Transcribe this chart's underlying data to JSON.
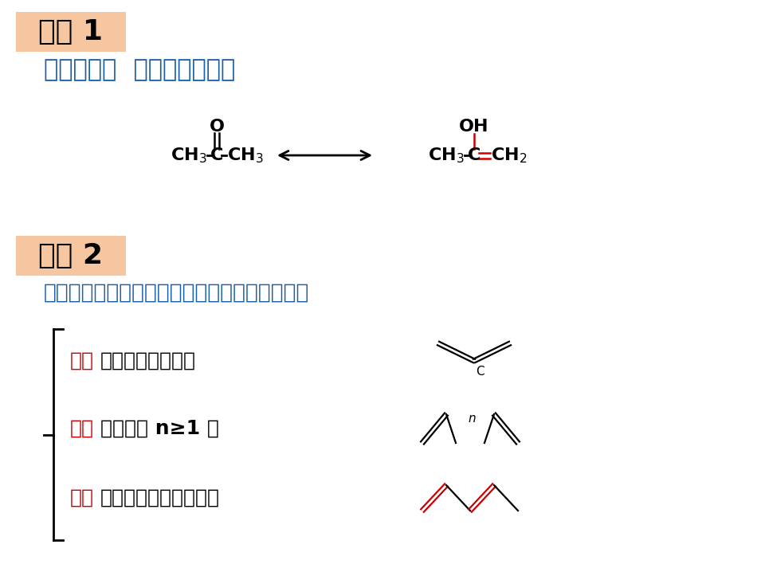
{
  "bg_color": "#ffffff",
  "title1": "复习 1",
  "title1_box_color": "#f5c6a0",
  "title1_text_color": "#000000",
  "subtitle1": "醛（酮）－  烯醇式互变异构",
  "subtitle1_color": "#1a5fa8",
  "title2": "复习 2",
  "title2_box_color": "#f5c6a0",
  "title2_text_color": "#000000",
  "subtitle2": "二烯烃分类、结构（根据双键的相对位置分类）",
  "subtitle2_color": "#1a5fa8",
  "diene1_red": "累积",
  "diene1_black": "二烯烃（不稳定）",
  "diene2_red": "孤立",
  "diene2_black": "二烯烃（ n≥1 ）",
  "diene3_red": "共轭",
  "diene3_black": "二烯烃（单双键交替）",
  "red_color": "#cc0000",
  "dark_blue": "#1a5fa8",
  "black": "#000000",
  "fig_w": 9.5,
  "fig_h": 7.13,
  "dpi": 100
}
